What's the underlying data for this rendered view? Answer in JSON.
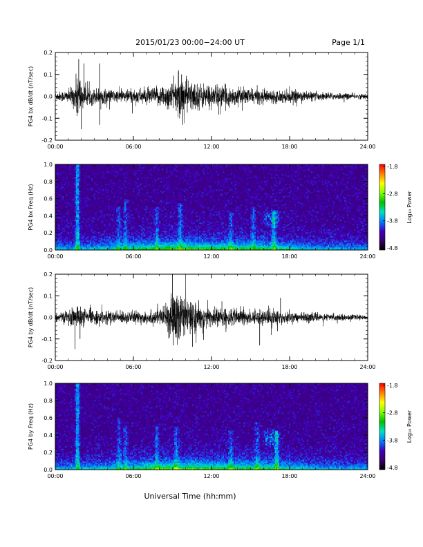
{
  "header": {
    "title": "2015/01/23  00:00−24:00 UT",
    "page": "Page 1/1"
  },
  "footer": {
    "xlabel": "Universal Time (hh:mm)"
  },
  "colorbar": {
    "label": "Log₁₀ Power",
    "ticks": [
      "-1.8",
      "-2.8",
      "-3.8",
      "-4.8"
    ],
    "colors": [
      "#ff0000",
      "#ff8000",
      "#ffff00",
      "#80ff00",
      "#00c000",
      "#00e0c0",
      "#0080ff",
      "#4000c0",
      "#3a006a",
      "#000000"
    ]
  },
  "chart_data": [
    {
      "type": "line",
      "ylabel": "PG4 bx dB/dt (nT/sec)",
      "xlim": [
        "00:00",
        "24:00"
      ],
      "ylim": [
        -0.2,
        0.2
      ],
      "xticks": [
        "00:00",
        "06:00",
        "12:00",
        "18:00",
        "24:00"
      ],
      "yticks": [
        "-0.2",
        "-0.1",
        "0.0",
        "0.1",
        "0.2"
      ],
      "envelope_hours": [
        0,
        1,
        1.5,
        1.8,
        2.0,
        2.5,
        3.4,
        4.5,
        6,
        7.5,
        8.5,
        9.3,
        9.8,
        10.5,
        11.5,
        12.5,
        14,
        15.5,
        16.5,
        18,
        20,
        22,
        24
      ],
      "envelope_amp": [
        0.02,
        0.03,
        0.06,
        0.16,
        0.06,
        0.04,
        0.04,
        0.03,
        0.035,
        0.04,
        0.06,
        0.08,
        0.1,
        0.07,
        0.06,
        0.055,
        0.04,
        0.035,
        0.03,
        0.03,
        0.02,
        0.015,
        0.012
      ],
      "spikes": [
        {
          "x": 1.8,
          "y": 0.17
        },
        {
          "x": 2.0,
          "y": -0.15
        },
        {
          "x": 2.2,
          "y": 0.15
        },
        {
          "x": 3.4,
          "y": 0.15
        },
        {
          "x": 3.4,
          "y": -0.13
        },
        {
          "x": 9.7,
          "y": 0.1
        },
        {
          "x": 9.8,
          "y": -0.13
        }
      ]
    },
    {
      "type": "heatmap",
      "ylabel": "PG4 bx Freq (Hz)",
      "xlim": [
        "00:00",
        "24:00"
      ],
      "ylim": [
        0,
        1.0
      ],
      "xticks": [
        "00:00",
        "06:00",
        "12:00",
        "18:00",
        "24:00"
      ],
      "yticks": [
        "0.0",
        "0.2",
        "0.4",
        "0.6",
        "0.8",
        "1.0"
      ],
      "zlim": [
        -4.8,
        -1.8
      ],
      "bursts": [
        {
          "hour": 1.7,
          "top_hz": 1.0,
          "strength": 1.0
        },
        {
          "hour": 4.9,
          "top_hz": 0.5,
          "strength": 0.5
        },
        {
          "hour": 5.4,
          "top_hz": 0.6,
          "strength": 0.5
        },
        {
          "hour": 7.8,
          "top_hz": 0.5,
          "strength": 0.5
        },
        {
          "hour": 9.6,
          "top_hz": 0.55,
          "strength": 0.6
        },
        {
          "hour": 13.5,
          "top_hz": 0.45,
          "strength": 0.5
        },
        {
          "hour": 15.2,
          "top_hz": 0.5,
          "strength": 0.5
        },
        {
          "hour": 16.8,
          "top_hz": 0.45,
          "strength": 0.8
        }
      ]
    },
    {
      "type": "line",
      "ylabel": "PG4 by dB/dt (nT/sec)",
      "xlim": [
        "00:00",
        "24:00"
      ],
      "ylim": [
        -0.2,
        0.2
      ],
      "xticks": [
        "00:00",
        "06:00",
        "12:00",
        "18:00",
        "24:00"
      ],
      "yticks": [
        "-0.2",
        "-0.1",
        "0.0",
        "0.1",
        "0.2"
      ],
      "envelope_hours": [
        0,
        1,
        1.5,
        2.0,
        2.5,
        4.5,
        6,
        7.5,
        8.5,
        9.0,
        9.3,
        9.7,
        10.5,
        12,
        14,
        15.5,
        17,
        18,
        20,
        22,
        24
      ],
      "envelope_amp": [
        0.02,
        0.03,
        0.06,
        0.05,
        0.035,
        0.03,
        0.03,
        0.035,
        0.05,
        0.12,
        0.16,
        0.11,
        0.07,
        0.05,
        0.04,
        0.035,
        0.04,
        0.025,
        0.02,
        0.015,
        0.01
      ],
      "spikes": [
        {
          "x": 9.0,
          "y": 0.2
        },
        {
          "x": 9.05,
          "y": -0.13
        },
        {
          "x": 1.9,
          "y": -0.1
        },
        {
          "x": 17.3,
          "y": 0.09
        },
        {
          "x": 15.7,
          "y": -0.13
        }
      ]
    },
    {
      "type": "heatmap",
      "ylabel": "PG4 by Freq (Hz)",
      "xlim": [
        "00:00",
        "24:00"
      ],
      "ylim": [
        0,
        1.0
      ],
      "xticks": [
        "00:00",
        "06:00",
        "12:00",
        "18:00",
        "24:00"
      ],
      "yticks": [
        "0.0",
        "0.2",
        "0.4",
        "0.6",
        "0.8",
        "1.0"
      ],
      "zlim": [
        -4.8,
        -1.8
      ],
      "bursts": [
        {
          "hour": 1.7,
          "top_hz": 1.0,
          "strength": 1.0
        },
        {
          "hour": 4.9,
          "top_hz": 0.6,
          "strength": 0.5
        },
        {
          "hour": 5.4,
          "top_hz": 0.5,
          "strength": 0.5
        },
        {
          "hour": 7.8,
          "top_hz": 0.5,
          "strength": 0.5
        },
        {
          "hour": 9.3,
          "top_hz": 0.5,
          "strength": 0.6
        },
        {
          "hour": 13.5,
          "top_hz": 0.45,
          "strength": 0.5
        },
        {
          "hour": 15.5,
          "top_hz": 0.55,
          "strength": 0.5
        },
        {
          "hour": 17.0,
          "top_hz": 0.45,
          "strength": 0.8
        }
      ]
    }
  ]
}
